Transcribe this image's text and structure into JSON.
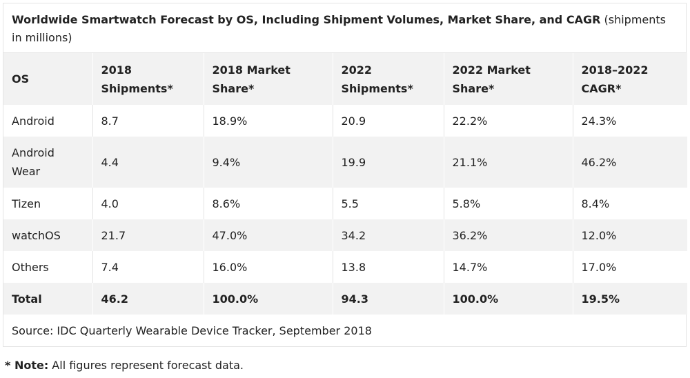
{
  "caption": {
    "bold": "Worldwide Smartwatch Forecast by OS, Including Shipment Volumes, Market Share, and CAGR",
    "rest": " (shipments in millions)"
  },
  "columns": [
    "OS",
    "2018 Shipments*",
    "2018 Market Share*",
    "2022 Shipments*",
    "2022 Market Share*",
    "2018–2022 CAGR*"
  ],
  "rows": [
    [
      "Android",
      "8.7",
      "18.9%",
      "20.9",
      "22.2%",
      "24.3%"
    ],
    [
      "Android Wear",
      "4.4",
      "9.4%",
      "19.9",
      "21.1%",
      "46.2%"
    ],
    [
      "Tizen",
      "4.0",
      "8.6%",
      "5.5",
      "5.8%",
      "8.4%"
    ],
    [
      "watchOS",
      "21.7",
      "47.0%",
      "34.2",
      "36.2%",
      "12.0%"
    ],
    [
      "Others",
      "7.4",
      "16.0%",
      "13.8",
      "14.7%",
      "17.0%"
    ]
  ],
  "total": [
    "Total",
    "46.2",
    "100.0%",
    "94.3",
    "100.0%",
    "19.5%"
  ],
  "source": "Source: IDC Quarterly Wearable Device Tracker, September 2018",
  "note": {
    "label": "* Note:",
    "text": " All figures represent forecast data."
  }
}
